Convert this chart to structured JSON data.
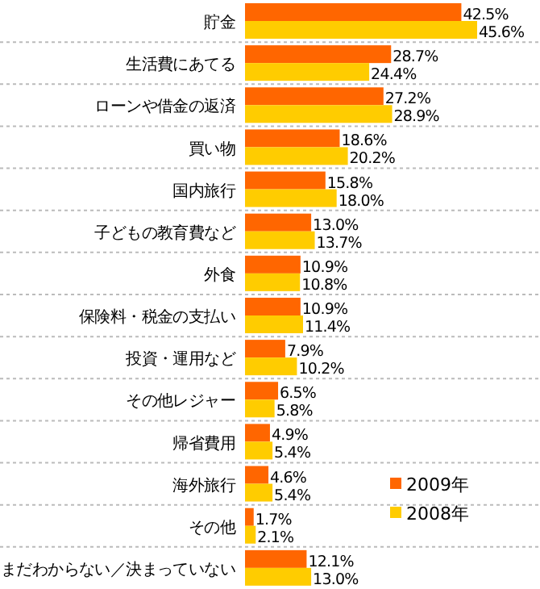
{
  "chart_data": {
    "type": "bar",
    "orientation": "horizontal",
    "legend": "bottom right",
    "categories": [
      "貯金",
      "生活費にあてる",
      "ローンや借金の返済",
      "買い物",
      "国内旅行",
      "子どもの教育費など",
      "外食",
      "保険料・税金の支払い",
      "投資・運用など",
      "その他レジャー",
      "帰省費用",
      "海外旅行",
      "その他",
      "まだわからない／決まっていない"
    ],
    "series": [
      {
        "name": "2009年",
        "color": "#ff6600",
        "values": [
          42.5,
          28.7,
          27.2,
          18.6,
          15.8,
          13.0,
          10.9,
          10.9,
          7.9,
          6.5,
          4.9,
          4.6,
          1.7,
          12.1
        ],
        "value_labels": [
          "42.5%",
          "28.7%",
          "27.2%",
          "18.6%",
          "15.8%",
          "13.0%",
          "10.9%",
          "10.9%",
          "7.9%",
          "6.5%",
          "4.9%",
          "4.6%",
          "1.7%",
          "12.1%"
        ]
      },
      {
        "name": "2008年",
        "color": "#ffcc00",
        "values": [
          45.6,
          24.4,
          28.9,
          20.2,
          18.0,
          13.7,
          10.8,
          11.4,
          10.2,
          5.8,
          5.4,
          5.4,
          2.1,
          13.0
        ],
        "value_labels": [
          "45.6%",
          "24.4%",
          "28.9%",
          "20.2%",
          "18.0%",
          "13.7%",
          "10.8%",
          "11.4%",
          "10.2%",
          "5.8%",
          "5.4%",
          "5.4%",
          "2.1%",
          "13.0%"
        ]
      }
    ]
  }
}
